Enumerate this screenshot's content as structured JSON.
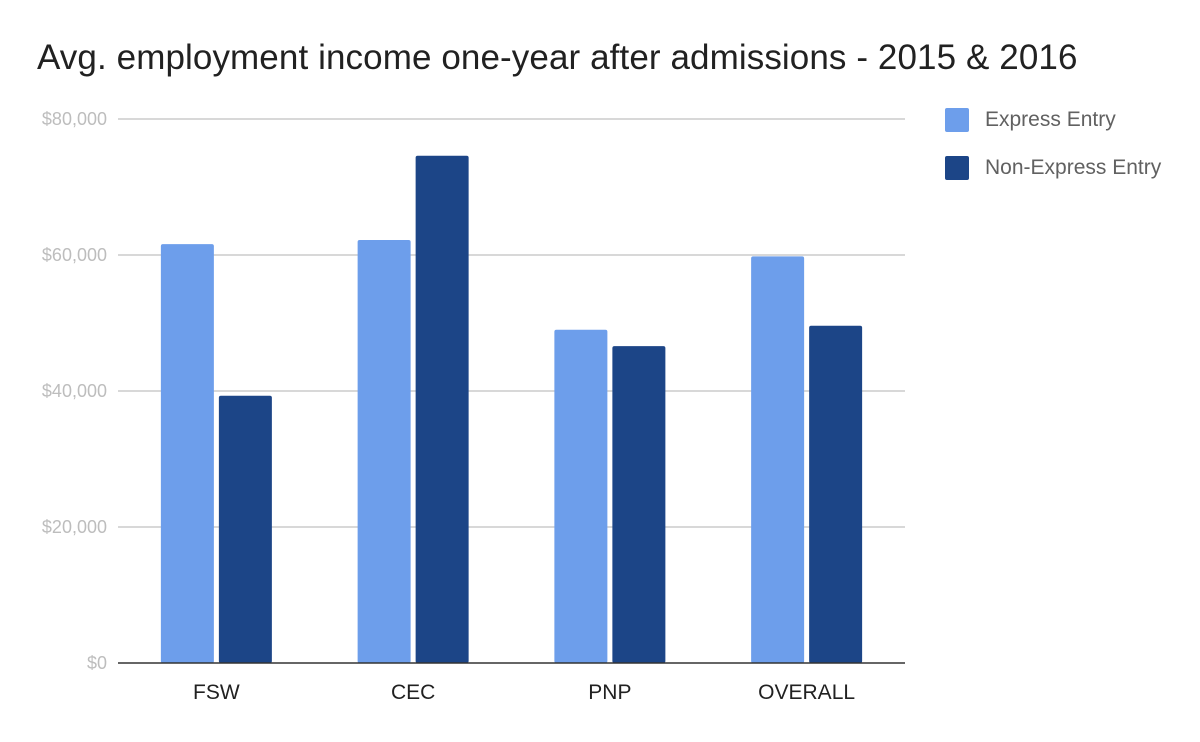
{
  "chart_data": {
    "type": "bar",
    "title": "Avg. employment income one-year after admissions - 2015 & 2016",
    "xlabel": "",
    "ylabel": "",
    "categories": [
      "FSW",
      "CEC",
      "PNP",
      "OVERALL"
    ],
    "series": [
      {
        "name": "Express Entry",
        "color": "#6d9eeb",
        "values": [
          61600,
          62200,
          49000,
          59800
        ]
      },
      {
        "name": "Non-Express Entry",
        "color": "#1c4587",
        "values": [
          39300,
          74600,
          46600,
          49600
        ]
      }
    ],
    "ylim": [
      0,
      80000
    ],
    "yticks": [
      0,
      20000,
      40000,
      60000,
      80000
    ],
    "ytick_labels": [
      "$0",
      "$20,000",
      "$40,000",
      "$60,000",
      "$80,000"
    ],
    "grid": true,
    "legend_position": "right"
  }
}
